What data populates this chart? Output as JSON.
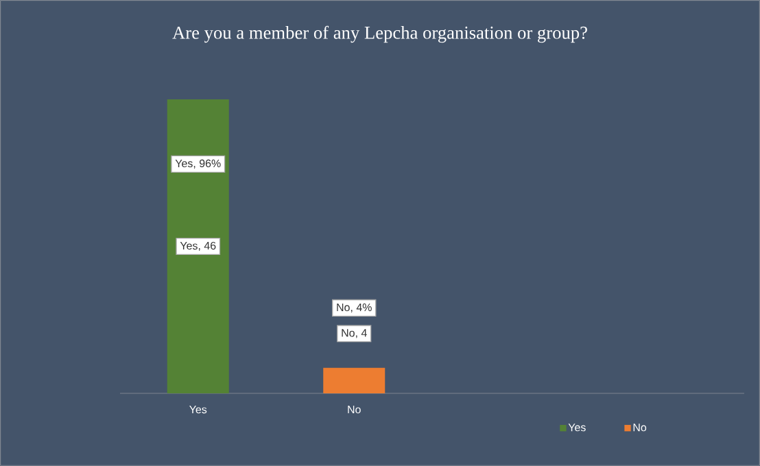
{
  "chart_data": {
    "type": "bar",
    "title": "Are you a member of any Lepcha organisation or group?",
    "categories": [
      "Yes",
      "No",
      null,
      null
    ],
    "series": [
      {
        "name": "Yes",
        "color": "#548235",
        "values": [
          46,
          null,
          null,
          null
        ],
        "value_labels": [
          "Yes, 46",
          null,
          null,
          null
        ]
      },
      {
        "name": "No",
        "color": "#ed7d31",
        "values": [
          null,
          4,
          null,
          null
        ],
        "value_labels": [
          null,
          "No, 4",
          null,
          null
        ]
      }
    ],
    "annotations": [
      "Yes, 96%",
      "No, 4%"
    ],
    "legend": "bottom right"
  }
}
